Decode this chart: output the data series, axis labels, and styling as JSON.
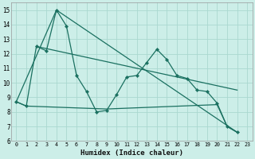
{
  "bg_color": "#cceee8",
  "grid_color": "#aad8d0",
  "line_color": "#1a7060",
  "xlabel": "Humidex (Indice chaleur)",
  "ylim": [
    6,
    15.5
  ],
  "xlim": [
    -0.5,
    23.5
  ],
  "yticks": [
    6,
    7,
    8,
    9,
    10,
    11,
    12,
    13,
    14,
    15
  ],
  "xticks": [
    0,
    1,
    2,
    3,
    4,
    5,
    6,
    7,
    8,
    9,
    10,
    11,
    12,
    13,
    14,
    15,
    16,
    17,
    18,
    19,
    20,
    21,
    22,
    23
  ],
  "series": [
    {
      "x": [
        0,
        1,
        2,
        3,
        4,
        5,
        6,
        7,
        8,
        9,
        10,
        11,
        12,
        13,
        14,
        15,
        16,
        17,
        18,
        19,
        20,
        21,
        22
      ],
      "y": [
        8.7,
        8.4,
        12.5,
        12.2,
        15.0,
        13.9,
        10.5,
        9.4,
        8.0,
        8.1,
        9.2,
        10.4,
        10.5,
        11.4,
        12.3,
        11.6,
        10.5,
        10.3,
        9.5,
        9.4,
        8.6,
        7.0,
        6.6
      ],
      "marker": true
    },
    {
      "x": [
        0,
        4,
        22
      ],
      "y": [
        8.7,
        15.0,
        6.6
      ],
      "marker": false
    },
    {
      "x": [
        2,
        22
      ],
      "y": [
        12.5,
        9.5
      ],
      "marker": false
    },
    {
      "x": [
        0,
        1,
        9,
        20,
        21,
        22
      ],
      "y": [
        8.7,
        8.4,
        8.2,
        8.5,
        7.0,
        6.6
      ],
      "marker": false
    }
  ]
}
